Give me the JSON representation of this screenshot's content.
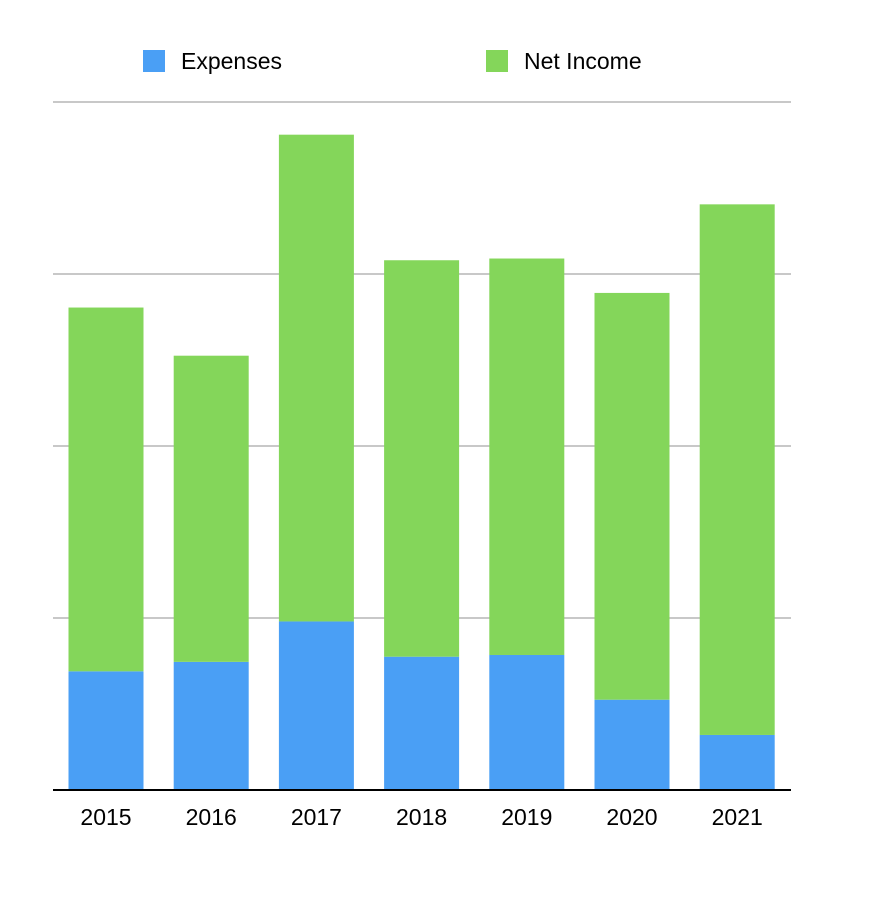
{
  "chart_data": {
    "type": "bar",
    "stacked": true,
    "title": "",
    "xlabel": "",
    "ylabel": "",
    "categories": [
      "2015",
      "2016",
      "2017",
      "2018",
      "2019",
      "2020",
      "2021"
    ],
    "series": [
      {
        "name": "Expenses",
        "color": "#4a9ff5",
        "values": [
          1.38,
          1.49,
          1.96,
          1.55,
          1.57,
          1.05,
          0.64
        ]
      },
      {
        "name": "Net Income",
        "color": "#84d65a",
        "values": [
          4.23,
          3.56,
          5.66,
          4.61,
          4.61,
          4.73,
          6.17
        ]
      }
    ],
    "ylim": [
      0,
      8
    ],
    "y_tick_values": [
      0,
      2,
      4,
      6,
      8
    ],
    "y_tick_labels_shown": false,
    "grid": "horizontal",
    "gridline_color": "#c8c8c8",
    "legend_position": "top"
  }
}
